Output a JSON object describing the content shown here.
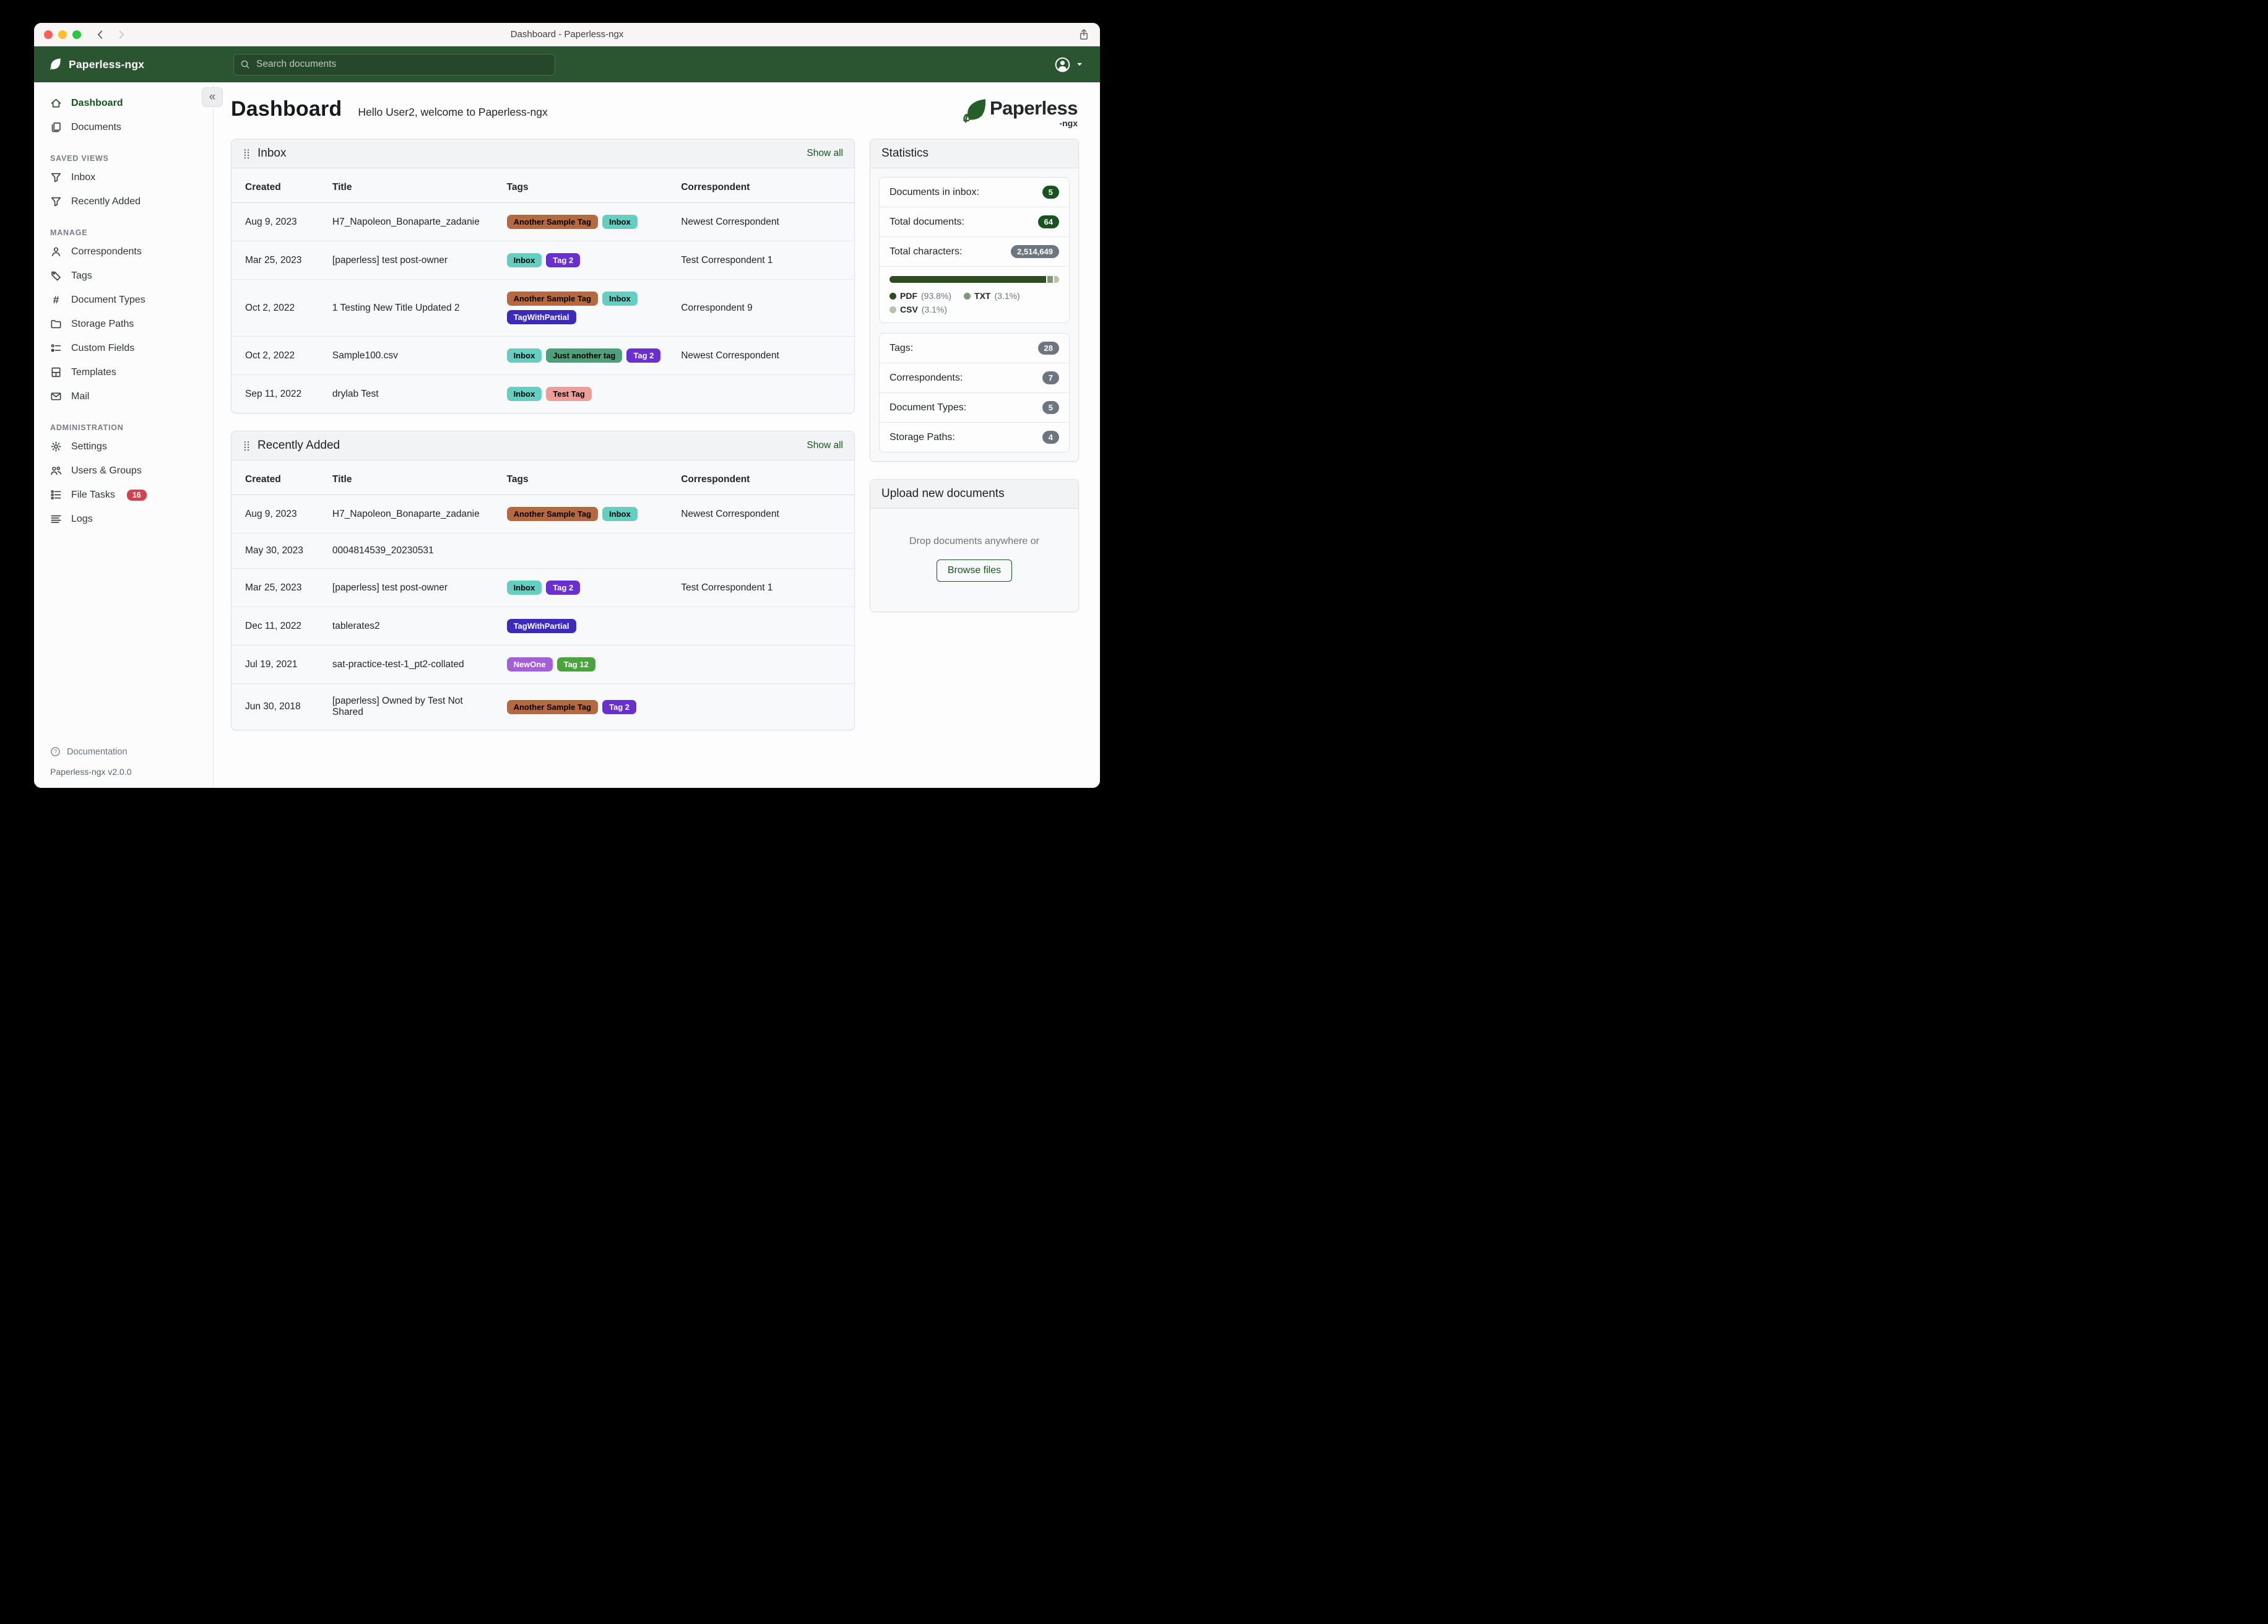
{
  "window": {
    "title": "Dashboard - Paperless-ngx"
  },
  "navbar": {
    "brand": "Paperless-ngx",
    "search_placeholder": "Search documents"
  },
  "sidebar": {
    "primary": [
      {
        "label": "Dashboard",
        "icon": "home-icon",
        "active": true
      },
      {
        "label": "Documents",
        "icon": "documents-icon",
        "active": false
      }
    ],
    "sections": [
      {
        "label": "SAVED VIEWS",
        "items": [
          {
            "label": "Inbox",
            "icon": "filter-icon"
          },
          {
            "label": "Recently Added",
            "icon": "filter-icon"
          }
        ]
      },
      {
        "label": "MANAGE",
        "items": [
          {
            "label": "Correspondents",
            "icon": "person-icon"
          },
          {
            "label": "Tags",
            "icon": "tag-icon"
          },
          {
            "label": "Document Types",
            "icon": "hash-icon"
          },
          {
            "label": "Storage Paths",
            "icon": "folder-icon"
          },
          {
            "label": "Custom Fields",
            "icon": "custom-fields-icon"
          },
          {
            "label": "Templates",
            "icon": "template-icon"
          },
          {
            "label": "Mail",
            "icon": "mail-icon"
          }
        ]
      },
      {
        "label": "ADMINISTRATION",
        "items": [
          {
            "label": "Settings",
            "icon": "gear-icon"
          },
          {
            "label": "Users & Groups",
            "icon": "users-icon"
          },
          {
            "label": "File Tasks",
            "icon": "tasks-icon",
            "badge": "16"
          },
          {
            "label": "Logs",
            "icon": "logs-icon"
          }
        ]
      }
    ],
    "footer": {
      "documentation": "Documentation",
      "version": "Paperless-ngx v2.0.0"
    }
  },
  "page": {
    "title": "Dashboard",
    "greeting": "Hello User2, welcome to Paperless-ngx"
  },
  "logo": {
    "wordmark": "Paperless",
    "suffix": "-ngx"
  },
  "tag_colors": {
    "Another Sample Tag": {
      "bg": "#b7683e",
      "fg": "#000000"
    },
    "Inbox": {
      "bg": "#64cec0",
      "fg": "#000000"
    },
    "Tag 2": {
      "bg": "#692fd0",
      "fg": "#ffffff"
    },
    "TagWithPartial": {
      "bg": "#3b2abd",
      "fg": "#ffffff"
    },
    "Just another tag": {
      "bg": "#4ea07d",
      "fg": "#000000"
    },
    "Test Tag": {
      "bg": "#ee9e99",
      "fg": "#000000"
    },
    "NewOne": {
      "bg": "#a45fd8",
      "fg": "#ffffff"
    },
    "Tag 12": {
      "bg": "#4aa33c",
      "fg": "#ffffff"
    }
  },
  "cards": {
    "inbox": {
      "title": "Inbox",
      "show_all": "Show all",
      "columns": [
        "Created",
        "Title",
        "Tags",
        "Correspondent"
      ],
      "rows": [
        {
          "created": "Aug 9, 2023",
          "title": "H7_Napoleon_Bonaparte_zadanie",
          "tags": [
            "Another Sample Tag",
            "Inbox"
          ],
          "correspondent": "Newest Correspondent"
        },
        {
          "created": "Mar 25, 2023",
          "title": "[paperless] test post-owner",
          "tags": [
            "Inbox",
            "Tag 2"
          ],
          "correspondent": "Test Correspondent 1"
        },
        {
          "created": "Oct 2, 2022",
          "title": "1 Testing New Title Updated 2",
          "tags": [
            "Another Sample Tag",
            "Inbox",
            "TagWithPartial"
          ],
          "correspondent": "Correspondent 9"
        },
        {
          "created": "Oct 2, 2022",
          "title": "Sample100.csv",
          "tags": [
            "Inbox",
            "Just another tag",
            "Tag 2"
          ],
          "correspondent": "Newest Correspondent"
        },
        {
          "created": "Sep 11, 2022",
          "title": "drylab Test",
          "tags": [
            "Inbox",
            "Test Tag"
          ],
          "correspondent": ""
        }
      ]
    },
    "recently_added": {
      "title": "Recently Added",
      "show_all": "Show all",
      "columns": [
        "Created",
        "Title",
        "Tags",
        "Correspondent"
      ],
      "rows": [
        {
          "created": "Aug 9, 2023",
          "title": "H7_Napoleon_Bonaparte_zadanie",
          "tags": [
            "Another Sample Tag",
            "Inbox"
          ],
          "correspondent": "Newest Correspondent"
        },
        {
          "created": "May 30, 2023",
          "title": "0004814539_20230531",
          "tags": [],
          "correspondent": ""
        },
        {
          "created": "Mar 25, 2023",
          "title": "[paperless] test post-owner",
          "tags": [
            "Inbox",
            "Tag 2"
          ],
          "correspondent": "Test Correspondent 1"
        },
        {
          "created": "Dec 11, 2022",
          "title": "tablerates2",
          "tags": [
            "TagWithPartial"
          ],
          "correspondent": ""
        },
        {
          "created": "Jul 19, 2021",
          "title": "sat-practice-test-1_pt2-collated",
          "tags": [
            "NewOne",
            "Tag 12"
          ],
          "correspondent": ""
        },
        {
          "created": "Jun 30, 2018",
          "title": "[paperless] Owned by Test Not Shared",
          "tags": [
            "Another Sample Tag",
            "Tag 2"
          ],
          "correspondent": ""
        }
      ]
    }
  },
  "statistics": {
    "title": "Statistics",
    "groups": [
      [
        {
          "label": "Documents in inbox:",
          "value": "5",
          "badge": "green"
        },
        {
          "label": "Total documents:",
          "value": "64",
          "badge": "green"
        },
        {
          "label": "Total characters:",
          "value": "2,514,649",
          "badge": "gray"
        }
      ],
      [
        {
          "label": "Tags:",
          "value": "28",
          "badge": "gray"
        },
        {
          "label": "Correspondents:",
          "value": "7",
          "badge": "gray"
        },
        {
          "label": "Document Types:",
          "value": "5",
          "badge": "gray"
        },
        {
          "label": "Storage Paths:",
          "value": "4",
          "badge": "gray"
        }
      ]
    ],
    "chart": {
      "type": "bar",
      "segments": [
        {
          "label": "PDF",
          "pct": 93.8,
          "pct_text": "(93.8%)",
          "color": "#2a4e20"
        },
        {
          "label": "TXT",
          "pct": 3.1,
          "pct_text": "(3.1%)",
          "color": "#7f977a"
        },
        {
          "label": "CSV",
          "pct": 3.1,
          "pct_text": "(3.1%)",
          "color": "#b4c3aa"
        }
      ]
    }
  },
  "upload": {
    "title": "Upload new documents",
    "drop_text": "Drop documents anywhere or",
    "button_label": "Browse files"
  }
}
